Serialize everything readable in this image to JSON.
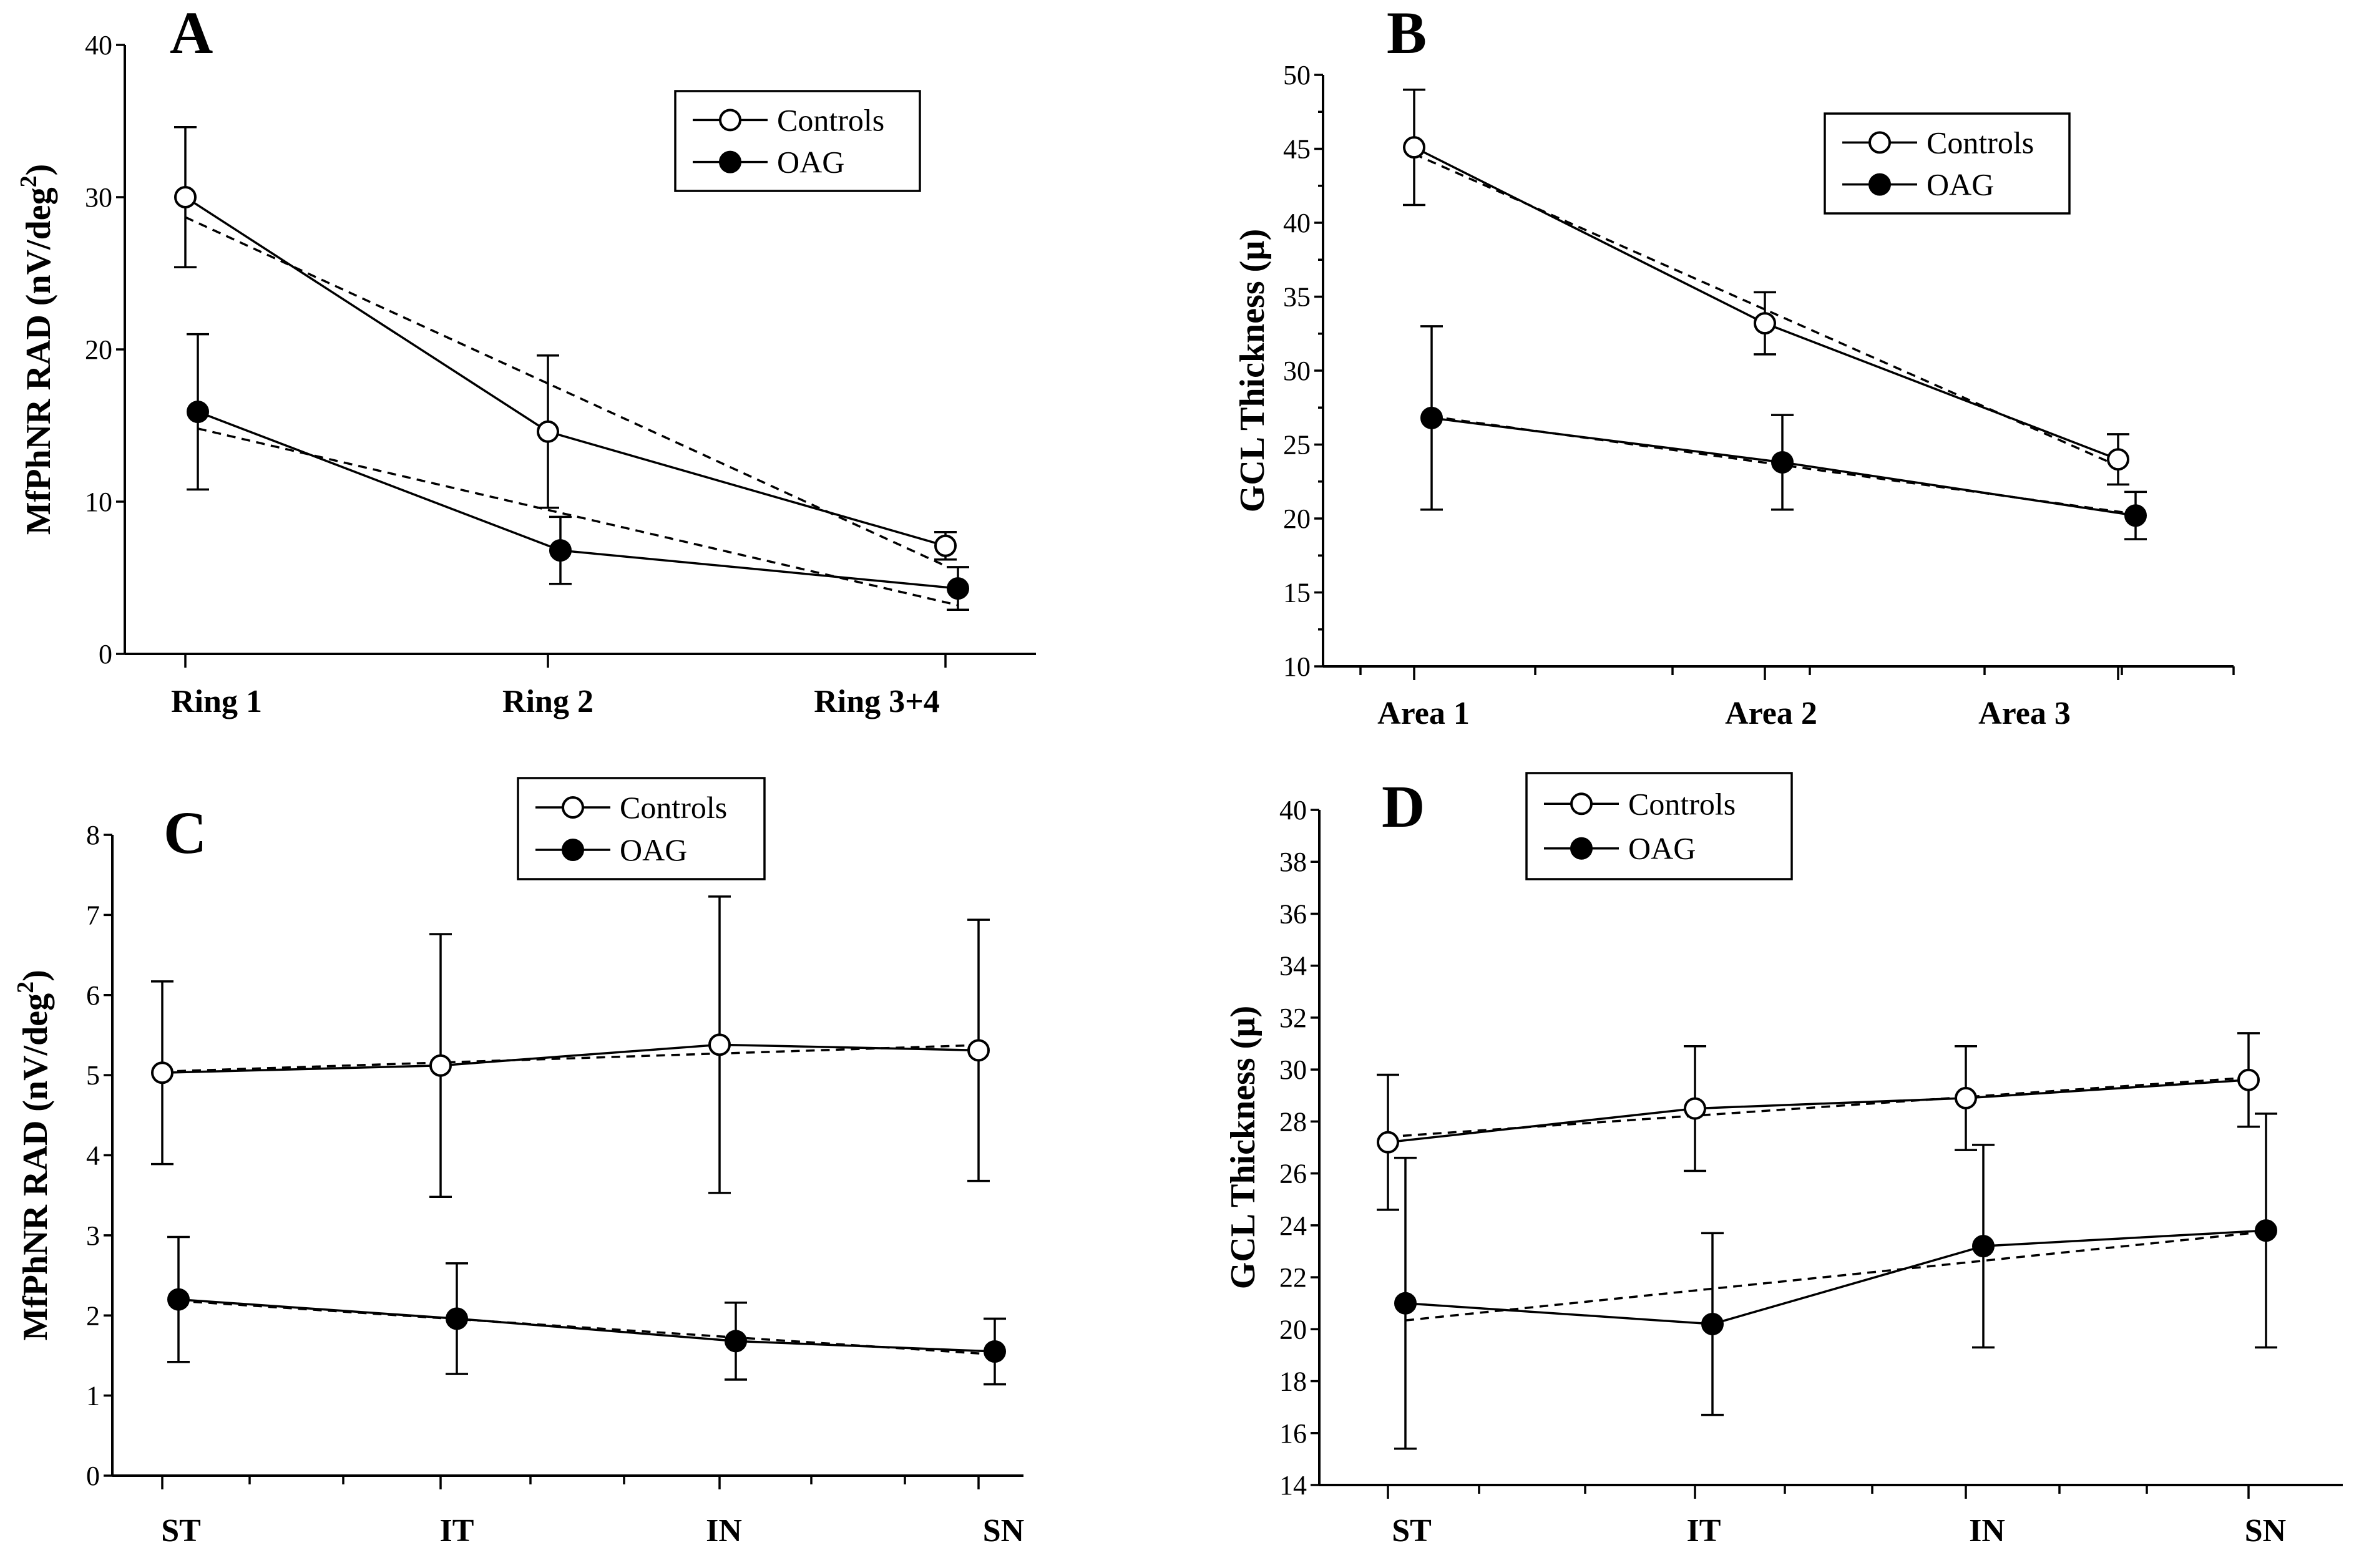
{
  "chart_data": [
    {
      "panel": "A",
      "type": "line",
      "categories": [
        "Ring 1",
        "Ring 2",
        "Ring 3+4"
      ],
      "ylabel": "MfPhNR RAD (nV/deg",
      "ylabel_sup": "2",
      "ylabel_end": ")",
      "ylim": [
        0,
        40
      ],
      "major_ticks": [
        0,
        10,
        20,
        30,
        40
      ],
      "series": [
        {
          "name": "Controls",
          "marker": "open-circle",
          "values": [
            30,
            14.6,
            7.1
          ],
          "errors": [
            4.6,
            5.0,
            0.9
          ]
        },
        {
          "name": "OAG",
          "marker": "filled-circle",
          "values": [
            15.9,
            6.8,
            4.3
          ],
          "errors": [
            5.1,
            2.2,
            1.4
          ]
        }
      ],
      "trendlines": true,
      "legend": {
        "position": "top-right",
        "entries": [
          "Controls",
          "OAG"
        ]
      }
    },
    {
      "panel": "B",
      "type": "line",
      "categories": [
        "Area 1",
        "Area 2",
        "Area 3"
      ],
      "ylabel": "GCL Thickness (µ)",
      "ylim": [
        10,
        50
      ],
      "major_ticks": [
        10,
        15,
        20,
        25,
        30,
        35,
        40,
        45,
        50
      ],
      "series": [
        {
          "name": "Controls",
          "marker": "open-circle",
          "values": [
            45.1,
            33.2,
            24.0
          ],
          "errors": [
            3.9,
            2.1,
            1.7
          ]
        },
        {
          "name": "OAG",
          "marker": "filled-circle",
          "values": [
            26.8,
            23.8,
            20.2
          ],
          "errors": [
            6.2,
            3.2,
            1.6
          ]
        }
      ],
      "trendlines": true,
      "legend": {
        "position": "top-right",
        "entries": [
          "Controls",
          "OAG"
        ]
      }
    },
    {
      "panel": "C",
      "type": "line",
      "categories": [
        "ST",
        "IT",
        "IN",
        "SN"
      ],
      "ylabel": "MfPhNR RAD (nV/deg",
      "ylabel_sup": "2",
      "ylabel_end": ")",
      "ylim": [
        0,
        8
      ],
      "major_ticks": [
        0,
        1,
        2,
        3,
        4,
        5,
        6,
        7,
        8
      ],
      "series": [
        {
          "name": "Controls",
          "marker": "open-circle",
          "values": [
            5.03,
            5.12,
            5.38,
            5.31
          ],
          "errors": [
            1.14,
            1.64,
            1.85,
            1.63
          ]
        },
        {
          "name": "OAG",
          "marker": "filled-circle",
          "values": [
            2.2,
            1.96,
            1.68,
            1.55
          ],
          "errors": [
            0.78,
            0.69,
            0.48,
            0.41
          ]
        }
      ],
      "trendlines": true,
      "legend": {
        "position": "top-center",
        "entries": [
          "Controls",
          "OAG"
        ]
      }
    },
    {
      "panel": "D",
      "type": "line",
      "categories": [
        "ST",
        "IT",
        "IN",
        "SN"
      ],
      "ylabel": "GCL Thickness (µ)",
      "ylim": [
        14,
        40
      ],
      "major_ticks": [
        14,
        16,
        18,
        20,
        22,
        24,
        26,
        28,
        30,
        32,
        34,
        36,
        38,
        40
      ],
      "series": [
        {
          "name": "Controls",
          "marker": "open-circle",
          "values": [
            27.2,
            28.5,
            28.9,
            29.6
          ],
          "errors": [
            2.6,
            2.4,
            2.0,
            1.8
          ]
        },
        {
          "name": "OAG",
          "marker": "filled-circle",
          "values": [
            21.0,
            20.2,
            23.2,
            23.8
          ],
          "errors": [
            5.6,
            3.5,
            3.9,
            4.5
          ]
        }
      ],
      "trendlines": true,
      "legend": {
        "position": "top-left",
        "entries": [
          "Controls",
          "OAG"
        ]
      }
    }
  ]
}
